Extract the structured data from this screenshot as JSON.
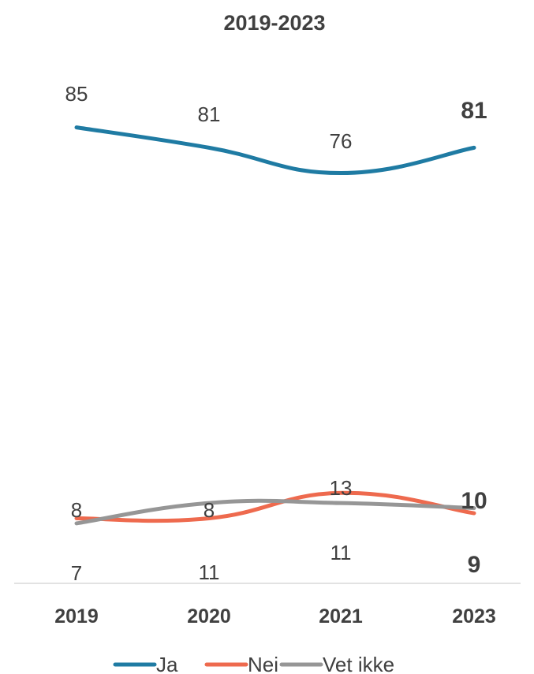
{
  "chart_data": {
    "type": "line",
    "title": "2019-2023",
    "categories": [
      "2019",
      "2020",
      "2021",
      "2023"
    ],
    "ylim": [
      0,
      100
    ],
    "grid": false,
    "legend_position": "bottom",
    "series": [
      {
        "name": "Ja",
        "color": "#1f7ba3",
        "values": [
          85,
          81,
          76,
          81
        ]
      },
      {
        "name": "Nei",
        "color": "#ee6a4e",
        "values": [
          8,
          8,
          13,
          9
        ]
      },
      {
        "name": "Vet ikke",
        "color": "#969696",
        "values": [
          7,
          11,
          11,
          10
        ]
      }
    ],
    "data_labels": [
      {
        "series": "Ja",
        "text": [
          "85",
          "81",
          "76",
          "81"
        ]
      },
      {
        "series": "Nei",
        "text": [
          "8",
          "8",
          "13",
          "9"
        ]
      },
      {
        "series": "Vet ikke",
        "text": [
          "7",
          "11",
          "11",
          "10"
        ]
      }
    ]
  }
}
